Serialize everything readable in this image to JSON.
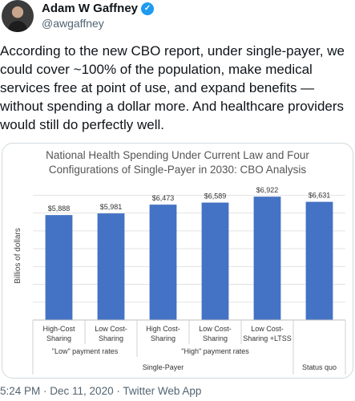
{
  "tweet": {
    "author_name": "Adam W Gaffney",
    "handle": "@awgaffney",
    "text": "According to the new CBO report, under single-payer, we could cover ~100% of the population, make medical services free at point of use, and expand benefits — without spending a dollar more.  And healthcare providers would still do perfectly well.",
    "timestamp": "5:24 PM · Dec 11, 2020 · Twitter Web App",
    "verified_icon": "verified-badge-icon",
    "colors": {
      "accent": "#1d9bf0",
      "bar": "#4472c4"
    }
  },
  "chart_data": {
    "type": "bar",
    "title_line1": "National Health Spending Under Current Law and Four",
    "title_line2": "Configurations of Single-Payer in 2030: CBO Analysis",
    "ylabel": "Billios of dollars",
    "ylim": [
      0,
      7200
    ],
    "categories": [
      {
        "line1": "High-Cost",
        "line2": "Sharing"
      },
      {
        "line1": "Low Cost-",
        "line2": "Sharing"
      },
      {
        "line1": "High Cost-",
        "line2": "Sharing"
      },
      {
        "line1": "Low Cost-",
        "line2": "Sharing"
      },
      {
        "line1": "Low Cost-",
        "line2": "Sharing +LTSS"
      },
      {
        "line1": "",
        "line2": ""
      }
    ],
    "values": [
      5888,
      5981,
      6473,
      6589,
      6922,
      6631
    ],
    "value_labels": [
      "$5,888",
      "$5,981",
      "$6,473",
      "$6,589",
      "$6,922",
      "$6,631"
    ],
    "groups_level1": [
      {
        "label": "\"Low\" payment rates",
        "span": [
          0,
          1
        ]
      },
      {
        "label": "\"High\" payment rates",
        "span": [
          2,
          4
        ]
      }
    ],
    "groups_level2": [
      {
        "label": "Single-Payer",
        "span": [
          0,
          4
        ]
      },
      {
        "label": "Status quo",
        "span": [
          5,
          5
        ]
      }
    ]
  }
}
